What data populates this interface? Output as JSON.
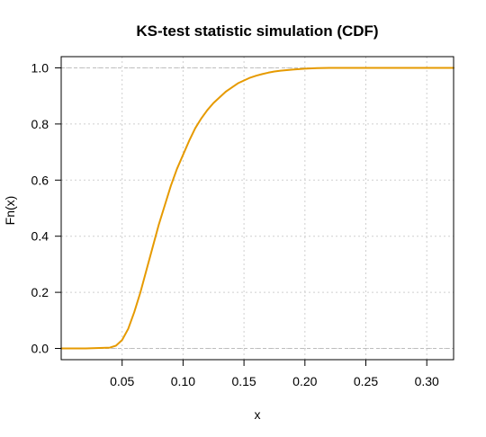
{
  "chart_data": {
    "type": "line",
    "title": "KS-test statistic simulation (CDF)",
    "xlabel": "x",
    "ylabel": "Fn(x)",
    "xlim": [
      0.0,
      0.322
    ],
    "ylim": [
      -0.04,
      1.04
    ],
    "x_ticks": [
      0.05,
      0.1,
      0.15,
      0.2,
      0.25,
      0.3
    ],
    "x_tick_labels": [
      "0.05",
      "0.10",
      "0.15",
      "0.20",
      "0.25",
      "0.30"
    ],
    "y_ticks": [
      0.0,
      0.2,
      0.4,
      0.6,
      0.8,
      1.0
    ],
    "y_tick_labels": [
      "0.0",
      "0.2",
      "0.4",
      "0.6",
      "0.8",
      "1.0"
    ],
    "grid": true,
    "series": [
      {
        "color": "#e69a00",
        "x": [
          0.0,
          0.02,
          0.04,
          0.045,
          0.05,
          0.055,
          0.06,
          0.065,
          0.07,
          0.075,
          0.08,
          0.085,
          0.09,
          0.095,
          0.1,
          0.105,
          0.11,
          0.115,
          0.12,
          0.125,
          0.13,
          0.135,
          0.14,
          0.145,
          0.15,
          0.155,
          0.16,
          0.165,
          0.17,
          0.175,
          0.18,
          0.19,
          0.2,
          0.21,
          0.22,
          0.25,
          0.3,
          0.322
        ],
        "y": [
          0.0,
          0.0,
          0.003,
          0.01,
          0.03,
          0.07,
          0.13,
          0.2,
          0.28,
          0.36,
          0.44,
          0.51,
          0.58,
          0.64,
          0.69,
          0.74,
          0.785,
          0.82,
          0.85,
          0.875,
          0.895,
          0.915,
          0.93,
          0.945,
          0.955,
          0.965,
          0.972,
          0.978,
          0.983,
          0.987,
          0.99,
          0.994,
          0.997,
          0.999,
          1.0,
          1.0,
          1.0,
          1.0
        ]
      }
    ],
    "reference_lines": [
      0.0,
      1.0
    ]
  }
}
